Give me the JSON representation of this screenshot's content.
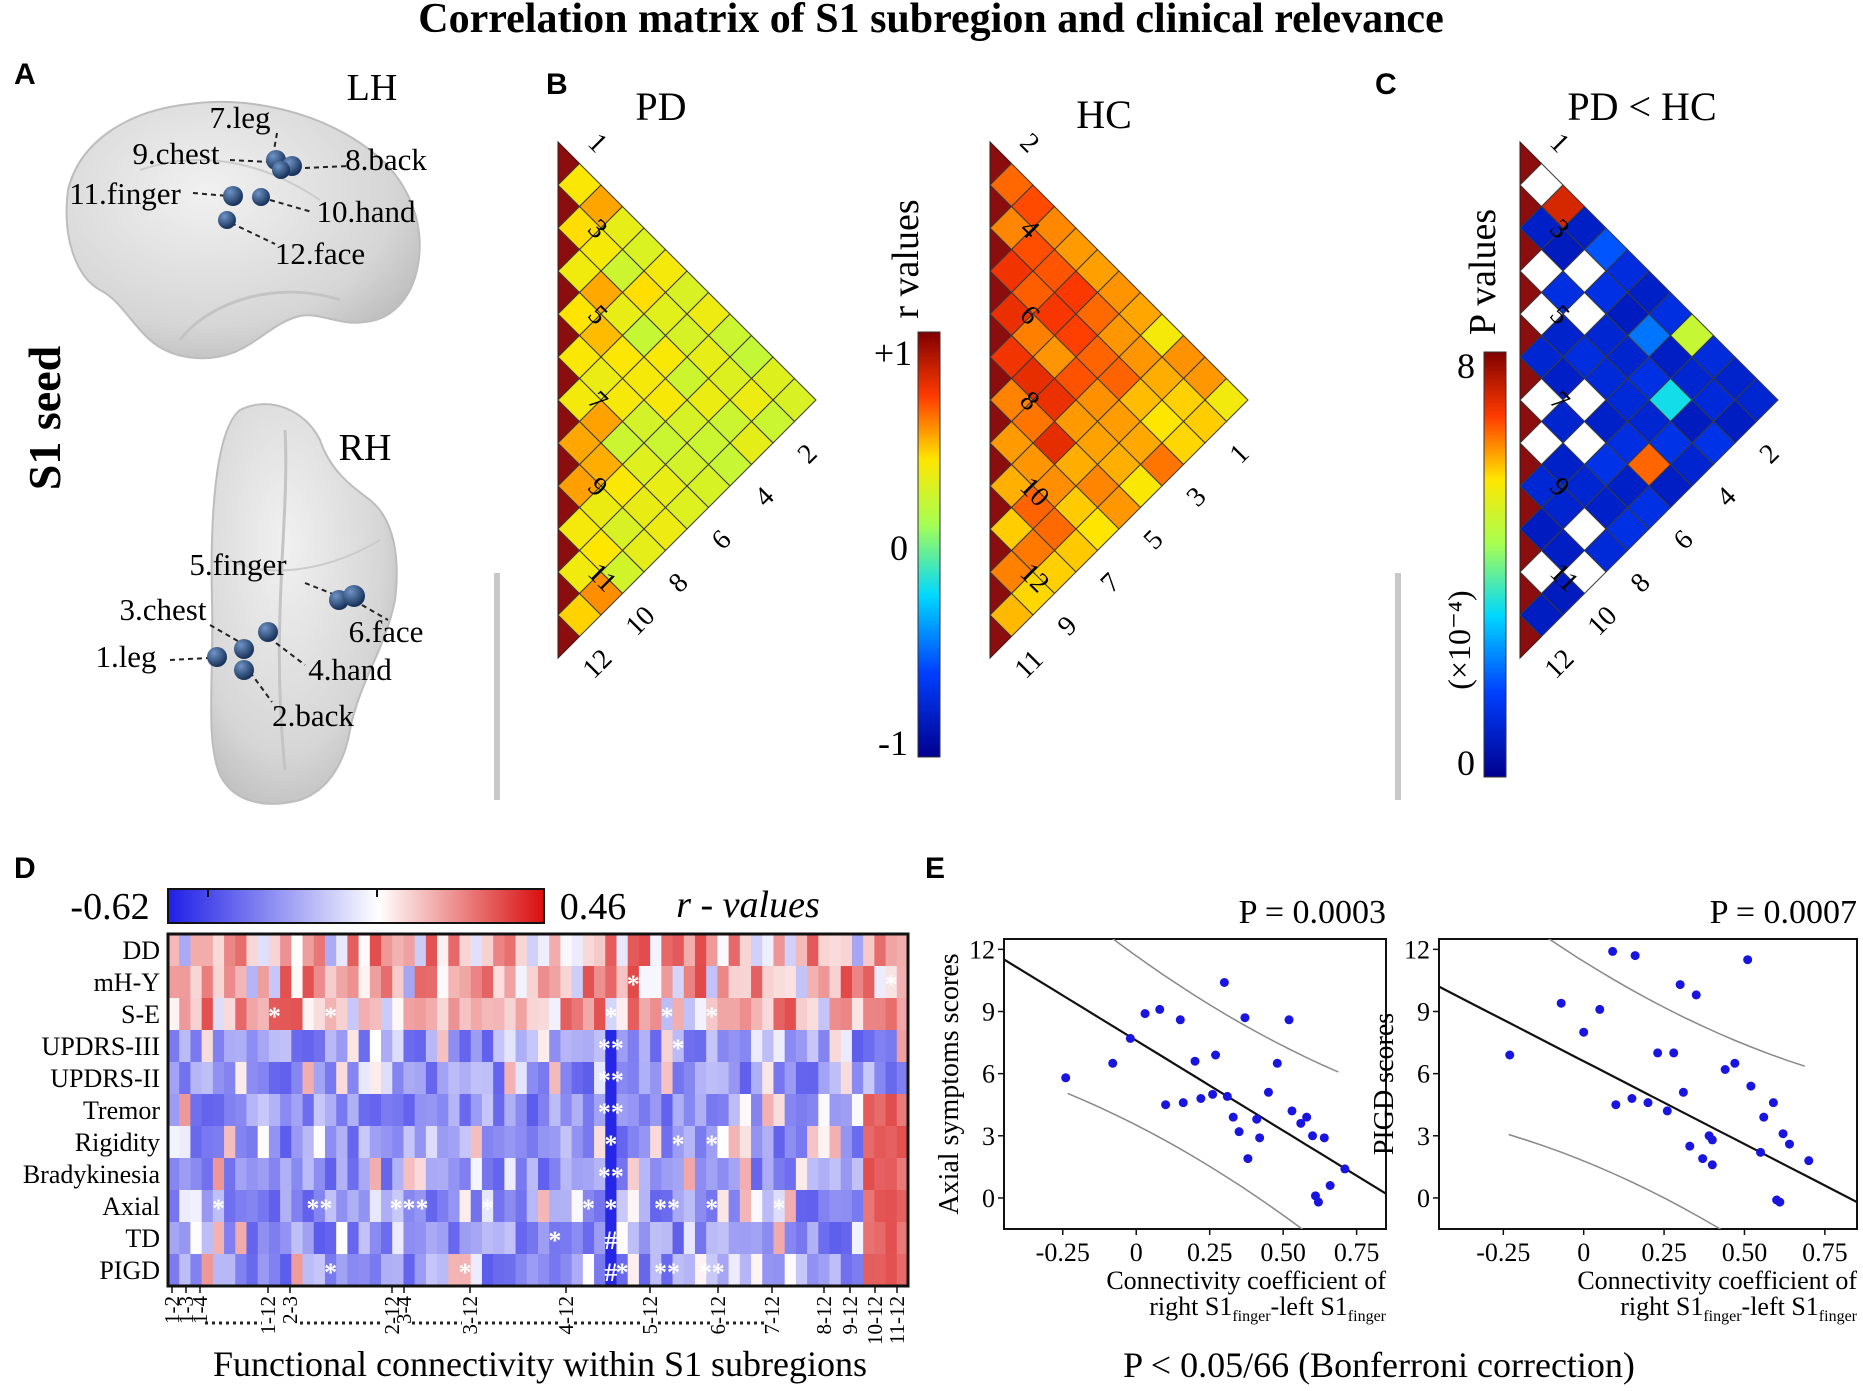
{
  "title": "Correlation matrix of S1 subregion and clinical relevance",
  "colors": {
    "dark_red": "#8b0d0d",
    "scatter_dot": "#1a14e0",
    "grid_stroke": "#3a3a3a",
    "brain_fill": "#d9d9d9",
    "seed_dot": "#2c4f7c",
    "divider": "#c8c8c8"
  },
  "panel_a": {
    "letter": "A",
    "seed_label": "S1 seed",
    "lh": {
      "hemisphere": "LH",
      "labels": [
        "7.leg",
        "9.chest",
        "8.back",
        "11.finger",
        "10.hand",
        "12.face"
      ]
    },
    "rh": {
      "hemisphere": "RH",
      "labels": [
        "5.finger",
        "3.chest",
        "6.face",
        "1.leg",
        "4.hand",
        "2.back"
      ]
    }
  },
  "panel_b": {
    "letter": "B",
    "pd_title": "PD",
    "hc_title": "HC",
    "colorbar": {
      "label": "r values",
      "max_label": "+1",
      "mid_label": "0",
      "min_label": "-1",
      "range": [
        -1,
        1
      ]
    },
    "pd_left_labels": [
      "1",
      "3",
      "5",
      "7",
      "9",
      "11"
    ],
    "pd_bottom_labels": [
      "2",
      "4",
      "6",
      "8",
      "10",
      "12"
    ],
    "hc_left_labels": [
      "2",
      "4",
      "6",
      "8",
      "10",
      "12"
    ],
    "hc_bottom_labels": [
      "1",
      "3",
      "5",
      "7",
      "9",
      "11"
    ]
  },
  "panel_c": {
    "letter": "C",
    "title": "PD < HC",
    "colorbar": {
      "label": "P values",
      "max_label": "8",
      "min_label": "0",
      "scale_label": "(×10⁻⁴)",
      "range": [
        0,
        8
      ]
    },
    "left_labels": [
      "1",
      "3",
      "5",
      "7",
      "9",
      "11"
    ],
    "bottom_labels": [
      "2",
      "4",
      "6",
      "8",
      "10",
      "12"
    ],
    "white_cells": [
      [
        2,
        5
      ],
      [
        3,
        6
      ],
      [
        4,
        7
      ],
      [
        5,
        8
      ],
      [
        6,
        9
      ],
      [
        7,
        10
      ],
      [
        8,
        11
      ],
      [
        9,
        12
      ],
      [
        2,
        3
      ],
      [
        4,
        5
      ],
      [
        1,
        2
      ],
      [
        6,
        7
      ],
      [
        7,
        8
      ],
      [
        3,
        4
      ],
      [
        10,
        11
      ],
      [
        5,
        6
      ],
      [
        8,
        9
      ]
    ],
    "highlight_cells": [
      {
        "pair": [
          1,
          5
        ],
        "p": 1.8
      },
      {
        "pair": [
          5,
          11
        ],
        "p": 6.5
      },
      {
        "pair": [
          3,
          10
        ],
        "p": 3.2
      },
      {
        "pair": [
          2,
          8
        ],
        "p": 2.1
      },
      {
        "pair": [
          1,
          9
        ],
        "p": 4.8
      },
      {
        "pair": [
          1,
          3
        ],
        "p": 7.2
      }
    ]
  },
  "panel_d": {
    "letter": "D",
    "colorbar": {
      "min_label": "-0.62",
      "max_label": "0.46",
      "label": "r - values",
      "range": [
        -0.62,
        0.46
      ]
    },
    "rows": [
      "DD",
      "mH-Y",
      "S-E",
      "UPDRS-III",
      "UPDRS-II",
      "Tremor",
      "Rigidity",
      "Bradykinesia",
      "Axial",
      "TD",
      "PIGD"
    ],
    "n_columns": 66,
    "x_tick_labels": [
      "1-2",
      "1-3",
      "1-4",
      "1-12",
      "2-3",
      "2-12",
      "3-4",
      "3-12",
      "4-12",
      "5-12",
      "6-12",
      "7-12",
      "8-12",
      "9-12",
      "10-12",
      "11-12"
    ],
    "x_label": "Functional connectivity within S1 subregions",
    "marks": [
      {
        "row": 1,
        "col": 41,
        "text": "*"
      },
      {
        "row": 1,
        "col": 64,
        "text": "*"
      },
      {
        "row": 2,
        "col": 9,
        "text": "*"
      },
      {
        "row": 2,
        "col": 14,
        "text": "*"
      },
      {
        "row": 2,
        "col": 39,
        "text": "*"
      },
      {
        "row": 2,
        "col": 44,
        "text": "*"
      },
      {
        "row": 2,
        "col": 48,
        "text": "*"
      },
      {
        "row": 3,
        "col": 39,
        "text": "**"
      },
      {
        "row": 3,
        "col": 45,
        "text": "*"
      },
      {
        "row": 4,
        "col": 39,
        "text": "**"
      },
      {
        "row": 5,
        "col": 39,
        "text": "**"
      },
      {
        "row": 6,
        "col": 39,
        "text": "*"
      },
      {
        "row": 6,
        "col": 45,
        "text": "*"
      },
      {
        "row": 6,
        "col": 48,
        "text": "*"
      },
      {
        "row": 7,
        "col": 39,
        "text": "**"
      },
      {
        "row": 8,
        "col": 4,
        "text": "*"
      },
      {
        "row": 8,
        "col": 13,
        "text": "**"
      },
      {
        "row": 8,
        "col": 21,
        "text": "***"
      },
      {
        "row": 8,
        "col": 28,
        "text": "*"
      },
      {
        "row": 8,
        "col": 37,
        "text": "*"
      },
      {
        "row": 8,
        "col": 39,
        "text": "*"
      },
      {
        "row": 8,
        "col": 44,
        "text": "**"
      },
      {
        "row": 8,
        "col": 48,
        "text": "*"
      },
      {
        "row": 8,
        "col": 54,
        "text": "*"
      },
      {
        "row": 9,
        "col": 34,
        "text": "*"
      },
      {
        "row": 9,
        "col": 39,
        "text": "#"
      },
      {
        "row": 9,
        "col": 40,
        "text": "*"
      },
      {
        "row": 10,
        "col": 14,
        "text": "*"
      },
      {
        "row": 10,
        "col": 26,
        "text": "*"
      },
      {
        "row": 10,
        "col": 39,
        "text": "#"
      },
      {
        "row": 10,
        "col": 40,
        "text": "*"
      },
      {
        "row": 10,
        "col": 44,
        "text": "**"
      },
      {
        "row": 10,
        "col": 48,
        "text": "**"
      }
    ]
  },
  "panel_e": {
    "letter": "E",
    "footer": "P < 0.05/66 (Bonferroni correction)",
    "x_label_line1": "Connectivity coefficient of",
    "x_label_line2_a": "right S1",
    "x_label_sub1": "finger",
    "x_label_line2_b": "-left S1",
    "x_label_sub2": "finger"
  },
  "chart_data": [
    {
      "type": "scatter",
      "title": "P = 0.0003",
      "xlabel": "Connectivity coefficient of right S1finger-left S1finger",
      "ylabel": "Axial symptoms scores",
      "xlim": [
        -0.45,
        0.85
      ],
      "ylim": [
        -1.5,
        12.5
      ],
      "xticks": [
        "-0.25",
        "0",
        "0.25",
        "0.50",
        "0.75"
      ],
      "xtick_values": [
        -0.25,
        0,
        0.25,
        0.5,
        0.75
      ],
      "yticks": [
        "0",
        "3",
        "6",
        "9",
        "12"
      ],
      "ytick_values": [
        0,
        3,
        6,
        9,
        12
      ],
      "fit_line": {
        "intercept": 7.6,
        "slope": -8.7
      },
      "ci_offset": 3.9,
      "points": [
        {
          "x": -0.24,
          "y": 5.8
        },
        {
          "x": -0.08,
          "y": 6.5
        },
        {
          "x": -0.02,
          "y": 7.7
        },
        {
          "x": 0.03,
          "y": 8.9
        },
        {
          "x": 0.08,
          "y": 9.1
        },
        {
          "x": 0.15,
          "y": 8.6
        },
        {
          "x": 0.1,
          "y": 4.5
        },
        {
          "x": 0.16,
          "y": 4.6
        },
        {
          "x": 0.2,
          "y": 6.6
        },
        {
          "x": 0.22,
          "y": 4.8
        },
        {
          "x": 0.27,
          "y": 6.9
        },
        {
          "x": 0.26,
          "y": 5.0
        },
        {
          "x": 0.3,
          "y": 10.4
        },
        {
          "x": 0.31,
          "y": 4.9
        },
        {
          "x": 0.33,
          "y": 3.9
        },
        {
          "x": 0.35,
          "y": 3.2
        },
        {
          "x": 0.37,
          "y": 8.7
        },
        {
          "x": 0.38,
          "y": 1.9
        },
        {
          "x": 0.41,
          "y": 3.8
        },
        {
          "x": 0.42,
          "y": 2.9
        },
        {
          "x": 0.45,
          "y": 5.1
        },
        {
          "x": 0.48,
          "y": 6.5
        },
        {
          "x": 0.52,
          "y": 8.6
        },
        {
          "x": 0.53,
          "y": 4.2
        },
        {
          "x": 0.56,
          "y": 3.6
        },
        {
          "x": 0.58,
          "y": 3.9
        },
        {
          "x": 0.6,
          "y": 3.0
        },
        {
          "x": 0.61,
          "y": 0.1
        },
        {
          "x": 0.62,
          "y": -0.2
        },
        {
          "x": 0.64,
          "y": 2.9
        },
        {
          "x": 0.66,
          "y": 0.6
        },
        {
          "x": 0.71,
          "y": 1.4
        }
      ]
    },
    {
      "type": "scatter",
      "title": "P = 0.0007",
      "xlabel": "Connectivity coefficient of right S1finger-left S1finger",
      "ylabel": "PIGD scores",
      "xlim": [
        -0.45,
        0.85
      ],
      "ylim": [
        -1.5,
        12.5
      ],
      "xticks": [
        "-0.25",
        "0",
        "0.25",
        "0.50",
        "0.75"
      ],
      "xtick_values": [
        -0.25,
        0,
        0.25,
        0.5,
        0.75
      ],
      "yticks": [
        "0",
        "3",
        "6",
        "9",
        "12"
      ],
      "ytick_values": [
        0,
        3,
        6,
        9,
        12
      ],
      "fit_line": {
        "intercept": 6.6,
        "slope": -8.0
      },
      "ci_offset": 4.6,
      "points": [
        {
          "x": -0.23,
          "y": 6.9
        },
        {
          "x": -0.07,
          "y": 9.4
        },
        {
          "x": 0.0,
          "y": 8.0
        },
        {
          "x": 0.05,
          "y": 9.1
        },
        {
          "x": 0.09,
          "y": 11.9
        },
        {
          "x": 0.16,
          "y": 11.7
        },
        {
          "x": 0.1,
          "y": 4.5
        },
        {
          "x": 0.15,
          "y": 4.8
        },
        {
          "x": 0.2,
          "y": 4.6
        },
        {
          "x": 0.23,
          "y": 7.0
        },
        {
          "x": 0.26,
          "y": 4.2
        },
        {
          "x": 0.28,
          "y": 7.0
        },
        {
          "x": 0.3,
          "y": 10.3
        },
        {
          "x": 0.31,
          "y": 5.1
        },
        {
          "x": 0.33,
          "y": 2.5
        },
        {
          "x": 0.35,
          "y": 9.8
        },
        {
          "x": 0.37,
          "y": 1.9
        },
        {
          "x": 0.39,
          "y": 3.0
        },
        {
          "x": 0.4,
          "y": 1.6
        },
        {
          "x": 0.4,
          "y": 2.8
        },
        {
          "x": 0.44,
          "y": 6.2
        },
        {
          "x": 0.47,
          "y": 6.5
        },
        {
          "x": 0.51,
          "y": 11.5
        },
        {
          "x": 0.52,
          "y": 5.4
        },
        {
          "x": 0.55,
          "y": 2.2
        },
        {
          "x": 0.56,
          "y": 3.9
        },
        {
          "x": 0.59,
          "y": 4.6
        },
        {
          "x": 0.6,
          "y": -0.1
        },
        {
          "x": 0.61,
          "y": -0.2
        },
        {
          "x": 0.62,
          "y": 3.1
        },
        {
          "x": 0.64,
          "y": 2.6
        },
        {
          "x": 0.7,
          "y": 1.8
        }
      ]
    }
  ]
}
